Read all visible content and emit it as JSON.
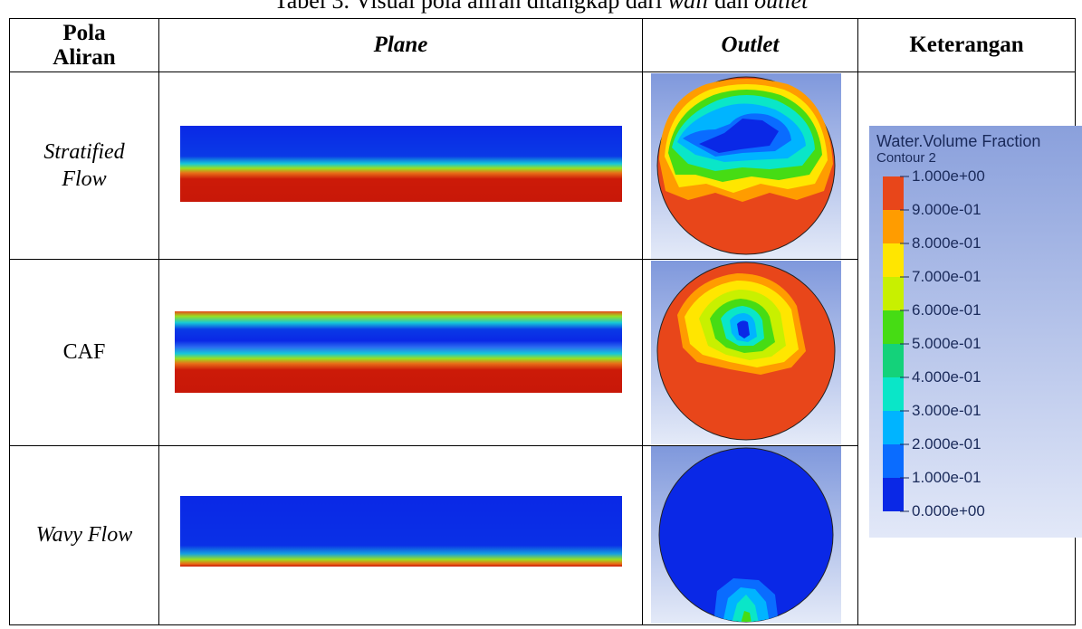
{
  "caption": {
    "prefix": "Tabel 3. Visual pola aliran ditangkap dari ",
    "wall": "wall",
    "middle": " dan ",
    "outlet": "outlet"
  },
  "table": {
    "headers": [
      "Pola Aliran",
      "Plane",
      "Outlet",
      "Keterangan"
    ],
    "header_pola_line1": "Pola",
    "header_pola_line2": "Aliran",
    "rows": [
      {
        "label_line1": "Stratified",
        "label_line2": "Flow",
        "italic": true
      },
      {
        "label_line1": "CAF",
        "label_line2": "",
        "italic": false
      },
      {
        "label_line1": "Wavy Flow",
        "label_line2": "",
        "italic": true
      }
    ]
  },
  "legend": {
    "title": "Water.Volume Fraction",
    "subtitle": "Contour 2",
    "levels": [
      "1.000e+00",
      "9.000e-01",
      "8.000e-01",
      "7.000e-01",
      "6.000e-01",
      "5.000e-01",
      "4.000e-01",
      "3.000e-01",
      "2.000e-01",
      "1.000e-01",
      "0.000e+00"
    ],
    "band_colors": [
      "#e8461a",
      "#ff9c00",
      "#ffe600",
      "#c8f000",
      "#46dc14",
      "#14d27a",
      "#0ae6c8",
      "#00b4ff",
      "#0a6cff",
      "#0a28e6"
    ],
    "background": "#8aa0dc"
  }
}
